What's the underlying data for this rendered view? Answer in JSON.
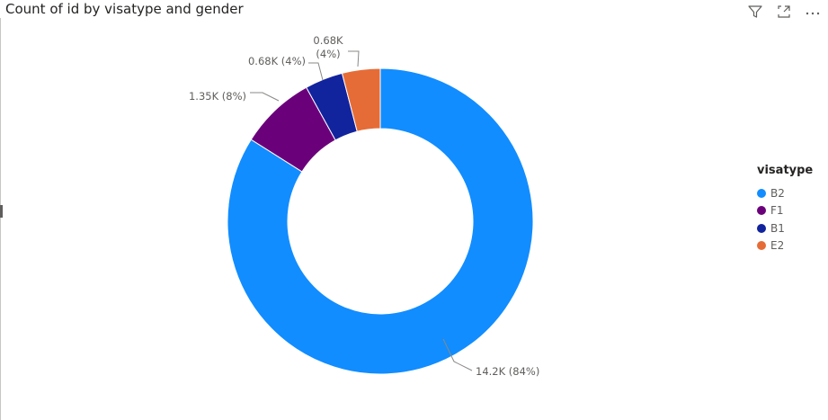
{
  "visual": {
    "title": "Count of id by visatype and gender",
    "icons": [
      "filter-icon",
      "focus-mode-icon",
      "more-options-icon"
    ]
  },
  "chart_data": {
    "type": "donut",
    "title": "Count of id by visatype and gender",
    "legend_title": "visatype",
    "legend_position": "right",
    "categories": [
      "B2",
      "F1",
      "B1",
      "E2"
    ],
    "values": [
      14200,
      1350,
      680,
      680
    ],
    "colors": [
      "#118DFF",
      "#6B007B",
      "#12239E",
      "#E66C37"
    ],
    "data_labels": [
      "14.2K (84%)",
      "1.35K (8%)",
      "0.68K (4%)",
      "0.68K\n(4%)"
    ]
  }
}
